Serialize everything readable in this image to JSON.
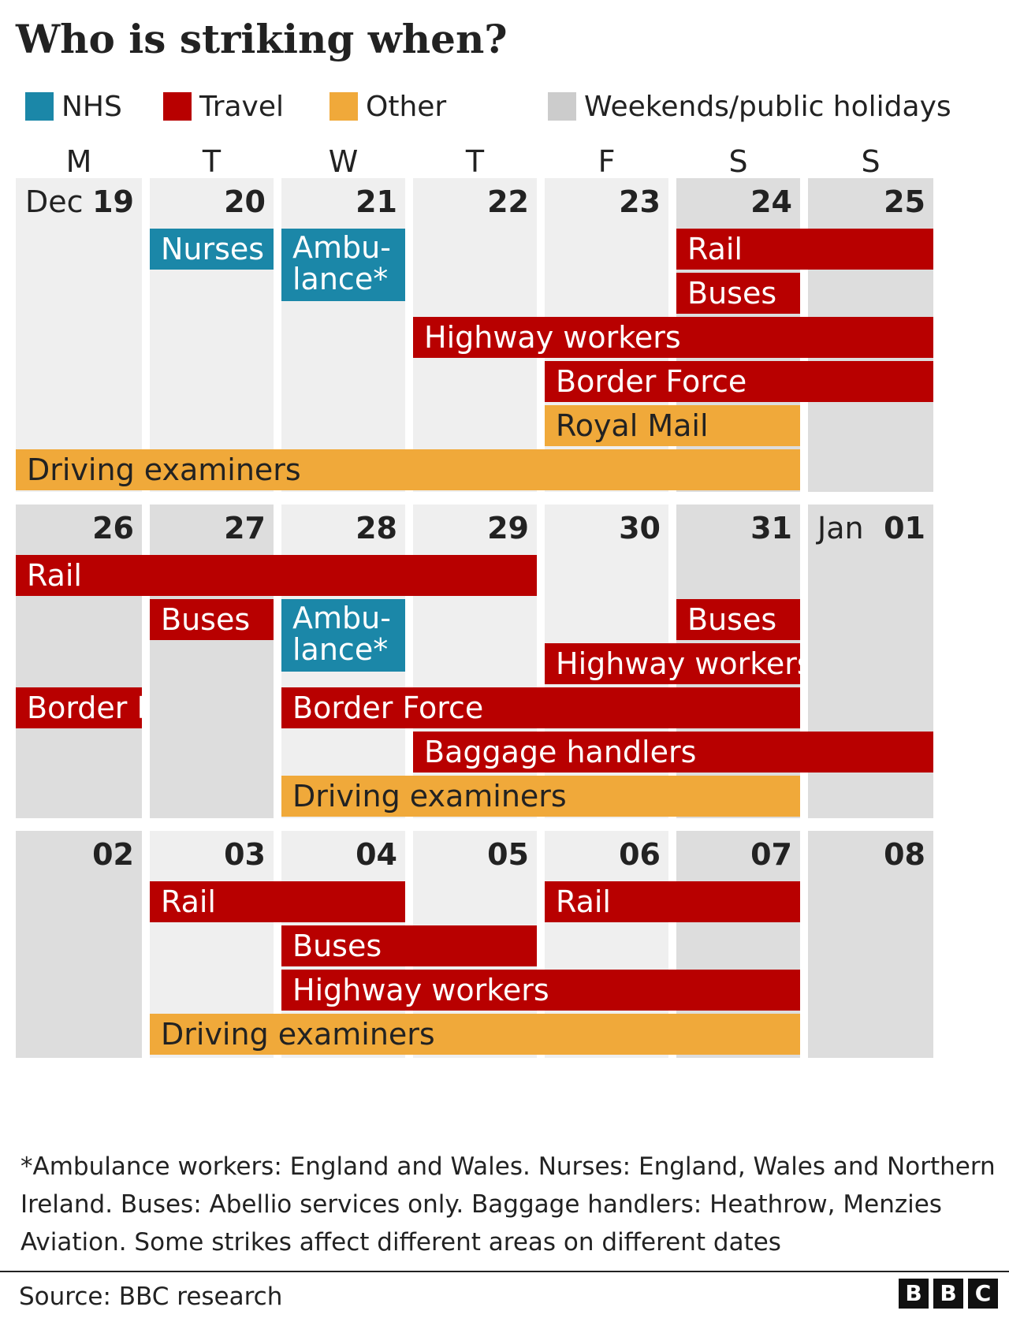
{
  "title": "Who is striking when?",
  "legend": [
    {
      "label": "NHS",
      "color": "#1b87a8"
    },
    {
      "label": "Travel",
      "color": "#b80000"
    },
    {
      "label": "Other",
      "color": "#f0a93a"
    },
    {
      "label": "Weekends/public holidays",
      "color": "#cccccc"
    }
  ],
  "chart_data": {
    "type": "table",
    "colors": {
      "NHS": "#1b87a8",
      "Travel": "#b80000",
      "Other": "#f0a93a",
      "weekday_bg": "#efefef",
      "weekend_bg": "#dddddd"
    },
    "weekdays": [
      "M",
      "T",
      "W",
      "T",
      "F",
      "S",
      "S"
    ],
    "weeks": [
      {
        "days": [
          {
            "num": "19",
            "month": "Dec",
            "weekend": false
          },
          {
            "num": "20",
            "weekend": false
          },
          {
            "num": "21",
            "weekend": false
          },
          {
            "num": "22",
            "weekend": false
          },
          {
            "num": "23",
            "weekend": false
          },
          {
            "num": "24",
            "weekend": true
          },
          {
            "num": "25",
            "weekend": true
          }
        ],
        "strikes": [
          {
            "label": "Nurses",
            "category": "NHS",
            "start_day": 2,
            "end_day": 2,
            "lane": 0
          },
          {
            "label": "Ambu-lance*",
            "category": "NHS",
            "start_day": 3,
            "end_day": 3,
            "lane": 0
          },
          {
            "label": "Rail",
            "category": "Travel",
            "start_day": 6,
            "end_day": 7,
            "lane": 0
          },
          {
            "label": "Buses",
            "category": "Travel",
            "start_day": 6,
            "end_day": 6,
            "lane": 1
          },
          {
            "label": "Highway workers",
            "category": "Travel",
            "start_day": 4,
            "end_day": 7,
            "lane": 2
          },
          {
            "label": "Border Force",
            "category": "Travel",
            "start_day": 5,
            "end_day": 7,
            "lane": 3
          },
          {
            "label": "Royal Mail",
            "category": "Other",
            "start_day": 5,
            "end_day": 6,
            "lane": 4
          },
          {
            "label": "Driving examiners",
            "category": "Other",
            "start_day": 1,
            "end_day": 6,
            "lane": 5
          }
        ]
      },
      {
        "days": [
          {
            "num": "26",
            "weekend": true
          },
          {
            "num": "27",
            "weekend": true
          },
          {
            "num": "28",
            "weekend": false
          },
          {
            "num": "29",
            "weekend": false
          },
          {
            "num": "30",
            "weekend": false
          },
          {
            "num": "31",
            "weekend": true
          },
          {
            "num": "01",
            "month": "Jan",
            "weekend": true
          }
        ],
        "strikes": [
          {
            "label": "Rail",
            "category": "Travel",
            "start_day": 1,
            "end_day": 4,
            "lane": 0
          },
          {
            "label": "Buses",
            "category": "Travel",
            "start_day": 2,
            "end_day": 2,
            "lane": 1
          },
          {
            "label": "Ambu-lance*",
            "category": "NHS",
            "start_day": 3,
            "end_day": 3,
            "lane": 1
          },
          {
            "label": "Buses",
            "category": "Travel",
            "start_day": 6,
            "end_day": 6,
            "lane": 1
          },
          {
            "label": "Highway workers",
            "category": "Travel",
            "start_day": 5,
            "end_day": 6,
            "lane": 2
          },
          {
            "label": "Border F.",
            "category": "Travel",
            "start_day": 1,
            "end_day": 1,
            "lane": 3
          },
          {
            "label": "Border Force",
            "category": "Travel",
            "start_day": 3,
            "end_day": 6,
            "lane": 3
          },
          {
            "label": "Baggage handlers",
            "category": "Travel",
            "start_day": 4,
            "end_day": 7,
            "lane": 4
          },
          {
            "label": "Driving examiners",
            "category": "Other",
            "start_day": 3,
            "end_day": 6,
            "lane": 5
          }
        ]
      },
      {
        "days": [
          {
            "num": "02",
            "weekend": true
          },
          {
            "num": "03",
            "weekend": false
          },
          {
            "num": "04",
            "weekend": false
          },
          {
            "num": "05",
            "weekend": false
          },
          {
            "num": "06",
            "weekend": false
          },
          {
            "num": "07",
            "weekend": true
          },
          {
            "num": "08",
            "weekend": true
          }
        ],
        "strikes": [
          {
            "label": "Rail",
            "category": "Travel",
            "start_day": 2,
            "end_day": 3,
            "lane": 0
          },
          {
            "label": "Rail",
            "category": "Travel",
            "start_day": 5,
            "end_day": 6,
            "lane": 0
          },
          {
            "label": "Buses",
            "category": "Travel",
            "start_day": 3,
            "end_day": 4,
            "lane": 1
          },
          {
            "label": "Highway workers",
            "category": "Travel",
            "start_day": 3,
            "end_day": 6,
            "lane": 2
          },
          {
            "label": "Driving examiners",
            "category": "Other",
            "start_day": 2,
            "end_day": 6,
            "lane": 3
          }
        ]
      }
    ]
  },
  "footnote": "*Ambulance workers: England and Wales. Nurses: England, Wales and Northern Ireland. Buses: Abellio services only. Baggage handlers: Heathrow, Menzies Aviation. Some strikes affect different areas on different dates",
  "source": "Source: BBC research",
  "logo": [
    "B",
    "B",
    "C"
  ]
}
